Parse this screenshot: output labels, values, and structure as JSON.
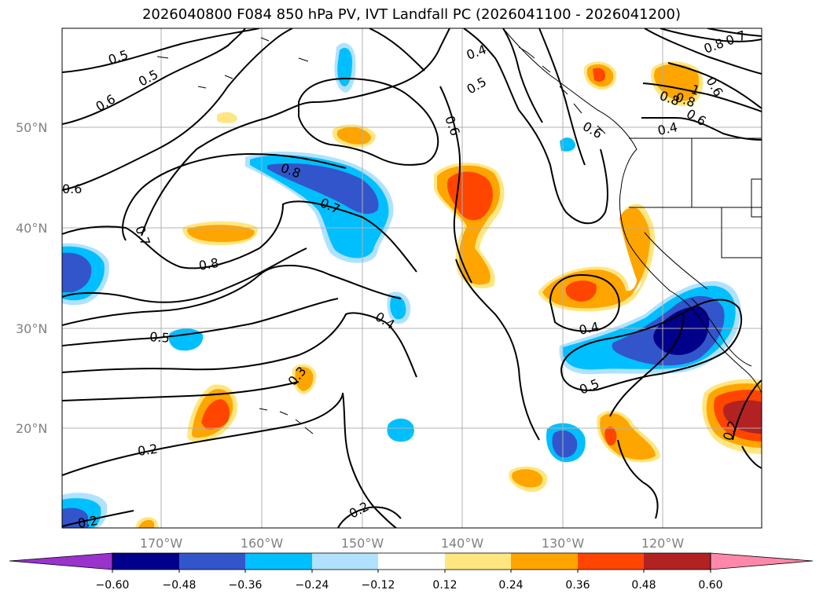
{
  "title": "2026040800 F084 850 hPa PV, IVT Landfall PC (2026041100 - 2026041200)",
  "map": {
    "lat_labels": [
      "50°N",
      "40°N",
      "30°N",
      "20°N"
    ],
    "lon_labels": [
      "170°W",
      "160°W",
      "150°W",
      "140°W",
      "130°W",
      "120°W"
    ],
    "contour_labels": [
      {
        "text": "0.5",
        "near": "upper-left"
      },
      {
        "text": "0.5",
        "near": "upper-left"
      },
      {
        "text": "0.6",
        "near": "upper-left"
      },
      {
        "text": "0.6",
        "near": "left"
      },
      {
        "text": "0.7",
        "near": "left"
      },
      {
        "text": "0.8",
        "near": "left-center"
      },
      {
        "text": "0.8",
        "near": "center"
      },
      {
        "text": "0.7",
        "near": "center"
      },
      {
        "text": "0.5",
        "near": "lower-left"
      },
      {
        "text": "0.4",
        "near": "center"
      },
      {
        "text": "0.3",
        "near": "lower-left-center"
      },
      {
        "text": "0.2",
        "near": "lower-left"
      },
      {
        "text": "0.2",
        "near": "bottom-center"
      },
      {
        "text": "0.2",
        "near": "bottom-left"
      },
      {
        "text": "0.4",
        "near": "top-center"
      },
      {
        "text": "0.5",
        "near": "top-center"
      },
      {
        "text": "0.6",
        "near": "top-center"
      },
      {
        "text": "0.6",
        "near": "top-right"
      },
      {
        "text": "0.4",
        "near": "right"
      },
      {
        "text": "0.5",
        "near": "right"
      },
      {
        "text": "0.4",
        "near": "right"
      },
      {
        "text": "0.2",
        "near": "lower-right"
      },
      {
        "text": "0.8",
        "near": "top-right"
      },
      {
        "text": "0.7",
        "near": "top-right"
      },
      {
        "text": "0.8",
        "near": "top-right"
      },
      {
        "text": "1",
        "near": "top-right"
      },
      {
        "text": "0.8",
        "near": "top-right"
      },
      {
        "text": "0.6",
        "near": "top-right"
      },
      {
        "text": "0.6",
        "near": "top-right"
      }
    ]
  },
  "colorbar": {
    "ticks": [
      "−0.60",
      "−0.48",
      "−0.36",
      "−0.24",
      "−0.12",
      "0.12",
      "0.24",
      "0.36",
      "0.48",
      "0.60"
    ],
    "colors": [
      "#9933cc",
      "#00008b",
      "#3355cc",
      "#00bfff",
      "#b0e2ff",
      "#ffffff",
      "#ffe680",
      "#ffa500",
      "#ff4500",
      "#b22222",
      "#ff88aa"
    ]
  }
}
